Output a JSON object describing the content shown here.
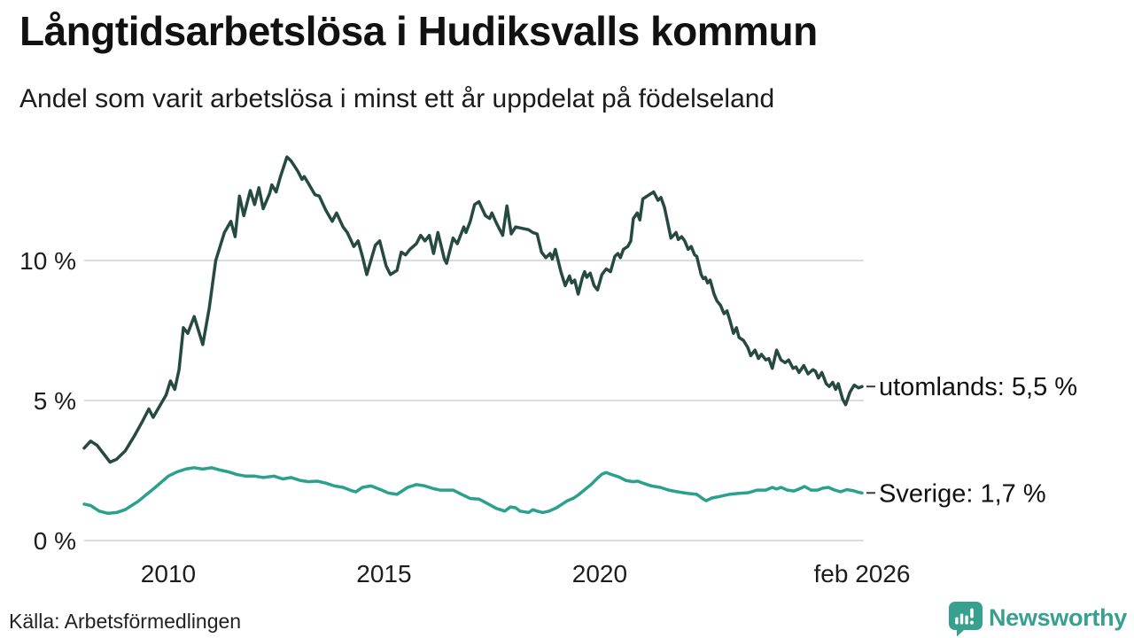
{
  "header": {
    "title": "Långtidsarbetslösa i Hudiksvalls kommun",
    "subtitle": "Andel som varit arbetslösa i minst ett år uppdelat på födelseland"
  },
  "chart_data": {
    "type": "line",
    "title": "Långtidsarbetslösa i Hudiksvalls kommun",
    "subtitle": "Andel som varit arbetslösa i minst ett år uppdelat på födelseland",
    "xlabel": "",
    "ylabel": "",
    "x_unit": "decimal_year",
    "x_domain": [
      2008.05,
      2026.08
    ],
    "ylim": [
      0,
      14.5
    ],
    "grid": "horizontal",
    "grid_color": "#dcdcdc",
    "y_ticks": [
      {
        "value": 0,
        "label": "0 %"
      },
      {
        "value": 5,
        "label": "5 %"
      },
      {
        "value": 10,
        "label": "10 %"
      }
    ],
    "x_ticks": [
      {
        "value": 2010,
        "label": "2010"
      },
      {
        "value": 2015,
        "label": "2015"
      },
      {
        "value": 2020,
        "label": "2020"
      },
      {
        "value": 2026.08,
        "label": "feb 2026"
      }
    ],
    "legend_position": "end-of-line-labels",
    "series": [
      {
        "name": "utomlands",
        "end_label": "utomlands: 5,5 %",
        "last_value": "5,5 %",
        "color": "#264a42",
        "points": [
          [
            2008.05,
            3.3
          ],
          [
            2008.2,
            3.55
          ],
          [
            2008.35,
            3.4
          ],
          [
            2008.5,
            3.1
          ],
          [
            2008.65,
            2.8
          ],
          [
            2008.8,
            2.9
          ],
          [
            2009.0,
            3.2
          ],
          [
            2009.2,
            3.7
          ],
          [
            2009.4,
            4.25
          ],
          [
            2009.55,
            4.7
          ],
          [
            2009.65,
            4.4
          ],
          [
            2009.8,
            4.8
          ],
          [
            2009.95,
            5.2
          ],
          [
            2010.05,
            5.7
          ],
          [
            2010.15,
            5.4
          ],
          [
            2010.25,
            6.1
          ],
          [
            2010.35,
            7.6
          ],
          [
            2010.45,
            7.4
          ],
          [
            2010.6,
            8.0
          ],
          [
            2010.8,
            7.0
          ],
          [
            2010.95,
            8.3
          ],
          [
            2011.1,
            10.0
          ],
          [
            2011.3,
            11.0
          ],
          [
            2011.45,
            11.4
          ],
          [
            2011.55,
            10.85
          ],
          [
            2011.65,
            12.3
          ],
          [
            2011.75,
            11.6
          ],
          [
            2011.9,
            12.5
          ],
          [
            2012.0,
            12.0
          ],
          [
            2012.1,
            12.6
          ],
          [
            2012.2,
            11.85
          ],
          [
            2012.35,
            12.4
          ],
          [
            2012.4,
            12.7
          ],
          [
            2012.5,
            12.45
          ],
          [
            2012.6,
            13.0
          ],
          [
            2012.75,
            13.7
          ],
          [
            2012.85,
            13.55
          ],
          [
            2013.0,
            13.2
          ],
          [
            2013.1,
            12.9
          ],
          [
            2013.15,
            13.0
          ],
          [
            2013.25,
            12.75
          ],
          [
            2013.4,
            12.35
          ],
          [
            2013.5,
            12.3
          ],
          [
            2013.65,
            11.8
          ],
          [
            2013.8,
            11.4
          ],
          [
            2013.9,
            11.7
          ],
          [
            2014.05,
            11.2
          ],
          [
            2014.15,
            11.0
          ],
          [
            2014.3,
            10.5
          ],
          [
            2014.4,
            10.7
          ],
          [
            2014.5,
            10.15
          ],
          [
            2014.6,
            9.5
          ],
          [
            2014.8,
            10.55
          ],
          [
            2014.9,
            10.7
          ],
          [
            2015.05,
            9.8
          ],
          [
            2015.15,
            9.5
          ],
          [
            2015.3,
            9.65
          ],
          [
            2015.4,
            10.3
          ],
          [
            2015.5,
            10.2
          ],
          [
            2015.6,
            10.4
          ],
          [
            2015.75,
            10.6
          ],
          [
            2015.85,
            10.9
          ],
          [
            2015.95,
            10.7
          ],
          [
            2016.05,
            10.9
          ],
          [
            2016.15,
            10.25
          ],
          [
            2016.25,
            11.0
          ],
          [
            2016.4,
            10.05
          ],
          [
            2016.45,
            9.9
          ],
          [
            2016.6,
            10.8
          ],
          [
            2016.7,
            10.6
          ],
          [
            2016.85,
            11.2
          ],
          [
            2016.9,
            11.0
          ],
          [
            2017.0,
            11.4
          ],
          [
            2017.1,
            12.0
          ],
          [
            2017.2,
            12.1
          ],
          [
            2017.35,
            11.6
          ],
          [
            2017.45,
            11.5
          ],
          [
            2017.5,
            11.7
          ],
          [
            2017.6,
            11.35
          ],
          [
            2017.75,
            10.9
          ],
          [
            2017.85,
            11.95
          ],
          [
            2017.95,
            10.95
          ],
          [
            2018.05,
            11.2
          ],
          [
            2018.2,
            11.15
          ],
          [
            2018.35,
            11.1
          ],
          [
            2018.45,
            11.0
          ],
          [
            2018.55,
            10.95
          ],
          [
            2018.65,
            10.3
          ],
          [
            2018.75,
            10.1
          ],
          [
            2018.85,
            10.25
          ],
          [
            2018.9,
            10.05
          ],
          [
            2018.97,
            10.4
          ],
          [
            2019.1,
            9.6
          ],
          [
            2019.2,
            9.1
          ],
          [
            2019.3,
            9.45
          ],
          [
            2019.35,
            9.2
          ],
          [
            2019.42,
            9.3
          ],
          [
            2019.5,
            8.8
          ],
          [
            2019.6,
            9.4
          ],
          [
            2019.65,
            9.6
          ],
          [
            2019.7,
            9.4
          ],
          [
            2019.78,
            9.55
          ],
          [
            2019.87,
            9.1
          ],
          [
            2019.95,
            8.95
          ],
          [
            2020.05,
            9.5
          ],
          [
            2020.15,
            9.7
          ],
          [
            2020.25,
            9.6
          ],
          [
            2020.35,
            10.15
          ],
          [
            2020.42,
            10.25
          ],
          [
            2020.48,
            10.1
          ],
          [
            2020.55,
            10.4
          ],
          [
            2020.65,
            10.5
          ],
          [
            2020.72,
            10.7
          ],
          [
            2020.78,
            11.5
          ],
          [
            2020.87,
            11.7
          ],
          [
            2020.93,
            11.45
          ],
          [
            2021.0,
            12.2
          ],
          [
            2021.15,
            12.35
          ],
          [
            2021.25,
            12.45
          ],
          [
            2021.35,
            12.15
          ],
          [
            2021.42,
            12.25
          ],
          [
            2021.5,
            11.9
          ],
          [
            2021.57,
            11.4
          ],
          [
            2021.65,
            10.8
          ],
          [
            2021.77,
            11.0
          ],
          [
            2021.82,
            10.75
          ],
          [
            2021.9,
            10.85
          ],
          [
            2021.97,
            10.7
          ],
          [
            2022.05,
            10.4
          ],
          [
            2022.12,
            10.5
          ],
          [
            2022.2,
            10.2
          ],
          [
            2022.25,
            10.15
          ],
          [
            2022.35,
            9.5
          ],
          [
            2022.4,
            9.35
          ],
          [
            2022.45,
            9.4
          ],
          [
            2022.5,
            9.2
          ],
          [
            2022.56,
            9.3
          ],
          [
            2022.65,
            8.8
          ],
          [
            2022.72,
            8.55
          ],
          [
            2022.8,
            8.4
          ],
          [
            2022.88,
            8.1
          ],
          [
            2022.95,
            8.2
          ],
          [
            2023.02,
            7.85
          ],
          [
            2023.1,
            7.4
          ],
          [
            2023.17,
            7.6
          ],
          [
            2023.23,
            7.25
          ],
          [
            2023.33,
            7.15
          ],
          [
            2023.43,
            6.9
          ],
          [
            2023.5,
            6.6
          ],
          [
            2023.6,
            6.8
          ],
          [
            2023.68,
            6.5
          ],
          [
            2023.75,
            6.65
          ],
          [
            2023.85,
            6.45
          ],
          [
            2023.92,
            6.5
          ],
          [
            2024.0,
            6.15
          ],
          [
            2024.1,
            6.8
          ],
          [
            2024.2,
            6.45
          ],
          [
            2024.3,
            6.35
          ],
          [
            2024.38,
            6.45
          ],
          [
            2024.48,
            6.15
          ],
          [
            2024.55,
            6.2
          ],
          [
            2024.62,
            6.0
          ],
          [
            2024.73,
            6.25
          ],
          [
            2024.83,
            5.95
          ],
          [
            2024.94,
            6.1
          ],
          [
            2025.0,
            6.05
          ],
          [
            2025.07,
            5.8
          ],
          [
            2025.15,
            6.0
          ],
          [
            2025.25,
            5.6
          ],
          [
            2025.32,
            5.5
          ],
          [
            2025.4,
            5.65
          ],
          [
            2025.47,
            5.4
          ],
          [
            2025.53,
            5.6
          ],
          [
            2025.63,
            5.05
          ],
          [
            2025.7,
            4.85
          ],
          [
            2025.8,
            5.3
          ],
          [
            2025.9,
            5.55
          ],
          [
            2026.0,
            5.45
          ],
          [
            2026.08,
            5.5
          ]
        ]
      },
      {
        "name": "Sverige",
        "end_label": "Sverige: 1,7 %",
        "last_value": "1,7 %",
        "color": "#2aa08d",
        "points": [
          [
            2008.05,
            1.3
          ],
          [
            2008.2,
            1.25
          ],
          [
            2008.4,
            1.05
          ],
          [
            2008.6,
            0.97
          ],
          [
            2008.8,
            1.0
          ],
          [
            2009.0,
            1.1
          ],
          [
            2009.15,
            1.25
          ],
          [
            2009.3,
            1.4
          ],
          [
            2009.5,
            1.65
          ],
          [
            2009.7,
            1.9
          ],
          [
            2009.85,
            2.1
          ],
          [
            2010.0,
            2.3
          ],
          [
            2010.2,
            2.45
          ],
          [
            2010.4,
            2.55
          ],
          [
            2010.6,
            2.6
          ],
          [
            2010.8,
            2.55
          ],
          [
            2011.0,
            2.6
          ],
          [
            2011.2,
            2.52
          ],
          [
            2011.4,
            2.45
          ],
          [
            2011.6,
            2.35
          ],
          [
            2011.8,
            2.3
          ],
          [
            2012.0,
            2.3
          ],
          [
            2012.2,
            2.25
          ],
          [
            2012.45,
            2.3
          ],
          [
            2012.65,
            2.2
          ],
          [
            2012.85,
            2.25
          ],
          [
            2013.05,
            2.15
          ],
          [
            2013.25,
            2.1
          ],
          [
            2013.45,
            2.12
          ],
          [
            2013.65,
            2.05
          ],
          [
            2013.85,
            1.95
          ],
          [
            2014.05,
            1.9
          ],
          [
            2014.25,
            1.78
          ],
          [
            2014.35,
            1.74
          ],
          [
            2014.5,
            1.9
          ],
          [
            2014.7,
            1.95
          ],
          [
            2014.95,
            1.8
          ],
          [
            2015.1,
            1.7
          ],
          [
            2015.3,
            1.65
          ],
          [
            2015.55,
            1.9
          ],
          [
            2015.75,
            2.0
          ],
          [
            2015.95,
            1.95
          ],
          [
            2016.15,
            1.85
          ],
          [
            2016.3,
            1.8
          ],
          [
            2016.6,
            1.8
          ],
          [
            2016.8,
            1.65
          ],
          [
            2017.0,
            1.5
          ],
          [
            2017.2,
            1.48
          ],
          [
            2017.4,
            1.32
          ],
          [
            2017.6,
            1.15
          ],
          [
            2017.8,
            1.05
          ],
          [
            2017.93,
            1.2
          ],
          [
            2018.05,
            1.17
          ],
          [
            2018.15,
            1.05
          ],
          [
            2018.35,
            1.0
          ],
          [
            2018.45,
            1.1
          ],
          [
            2018.55,
            1.05
          ],
          [
            2018.68,
            1.0
          ],
          [
            2018.83,
            1.05
          ],
          [
            2019.0,
            1.17
          ],
          [
            2019.1,
            1.27
          ],
          [
            2019.25,
            1.42
          ],
          [
            2019.4,
            1.52
          ],
          [
            2019.52,
            1.65
          ],
          [
            2019.67,
            1.84
          ],
          [
            2019.8,
            2.0
          ],
          [
            2019.93,
            2.2
          ],
          [
            2020.05,
            2.37
          ],
          [
            2020.15,
            2.43
          ],
          [
            2020.25,
            2.37
          ],
          [
            2020.45,
            2.27
          ],
          [
            2020.6,
            2.15
          ],
          [
            2020.77,
            2.1
          ],
          [
            2020.88,
            2.12
          ],
          [
            2021.0,
            2.05
          ],
          [
            2021.2,
            1.95
          ],
          [
            2021.4,
            1.9
          ],
          [
            2021.6,
            1.8
          ],
          [
            2021.8,
            1.74
          ],
          [
            2022.05,
            1.68
          ],
          [
            2022.25,
            1.65
          ],
          [
            2022.4,
            1.48
          ],
          [
            2022.47,
            1.42
          ],
          [
            2022.6,
            1.52
          ],
          [
            2022.8,
            1.58
          ],
          [
            2023.0,
            1.65
          ],
          [
            2023.2,
            1.68
          ],
          [
            2023.45,
            1.71
          ],
          [
            2023.65,
            1.8
          ],
          [
            2023.85,
            1.8
          ],
          [
            2024.0,
            1.9
          ],
          [
            2024.1,
            1.84
          ],
          [
            2024.2,
            1.9
          ],
          [
            2024.35,
            1.8
          ],
          [
            2024.5,
            1.77
          ],
          [
            2024.62,
            1.84
          ],
          [
            2024.75,
            1.93
          ],
          [
            2024.9,
            1.8
          ],
          [
            2025.05,
            1.8
          ],
          [
            2025.17,
            1.87
          ],
          [
            2025.3,
            1.9
          ],
          [
            2025.45,
            1.8
          ],
          [
            2025.58,
            1.74
          ],
          [
            2025.73,
            1.82
          ],
          [
            2025.88,
            1.78
          ],
          [
            2026.0,
            1.72
          ],
          [
            2026.08,
            1.7
          ]
        ]
      }
    ]
  },
  "footer": {
    "source": "Källa: Arbetsförmedlingen",
    "brand": {
      "name": "Newsworthy",
      "color": "#38a08f"
    }
  }
}
